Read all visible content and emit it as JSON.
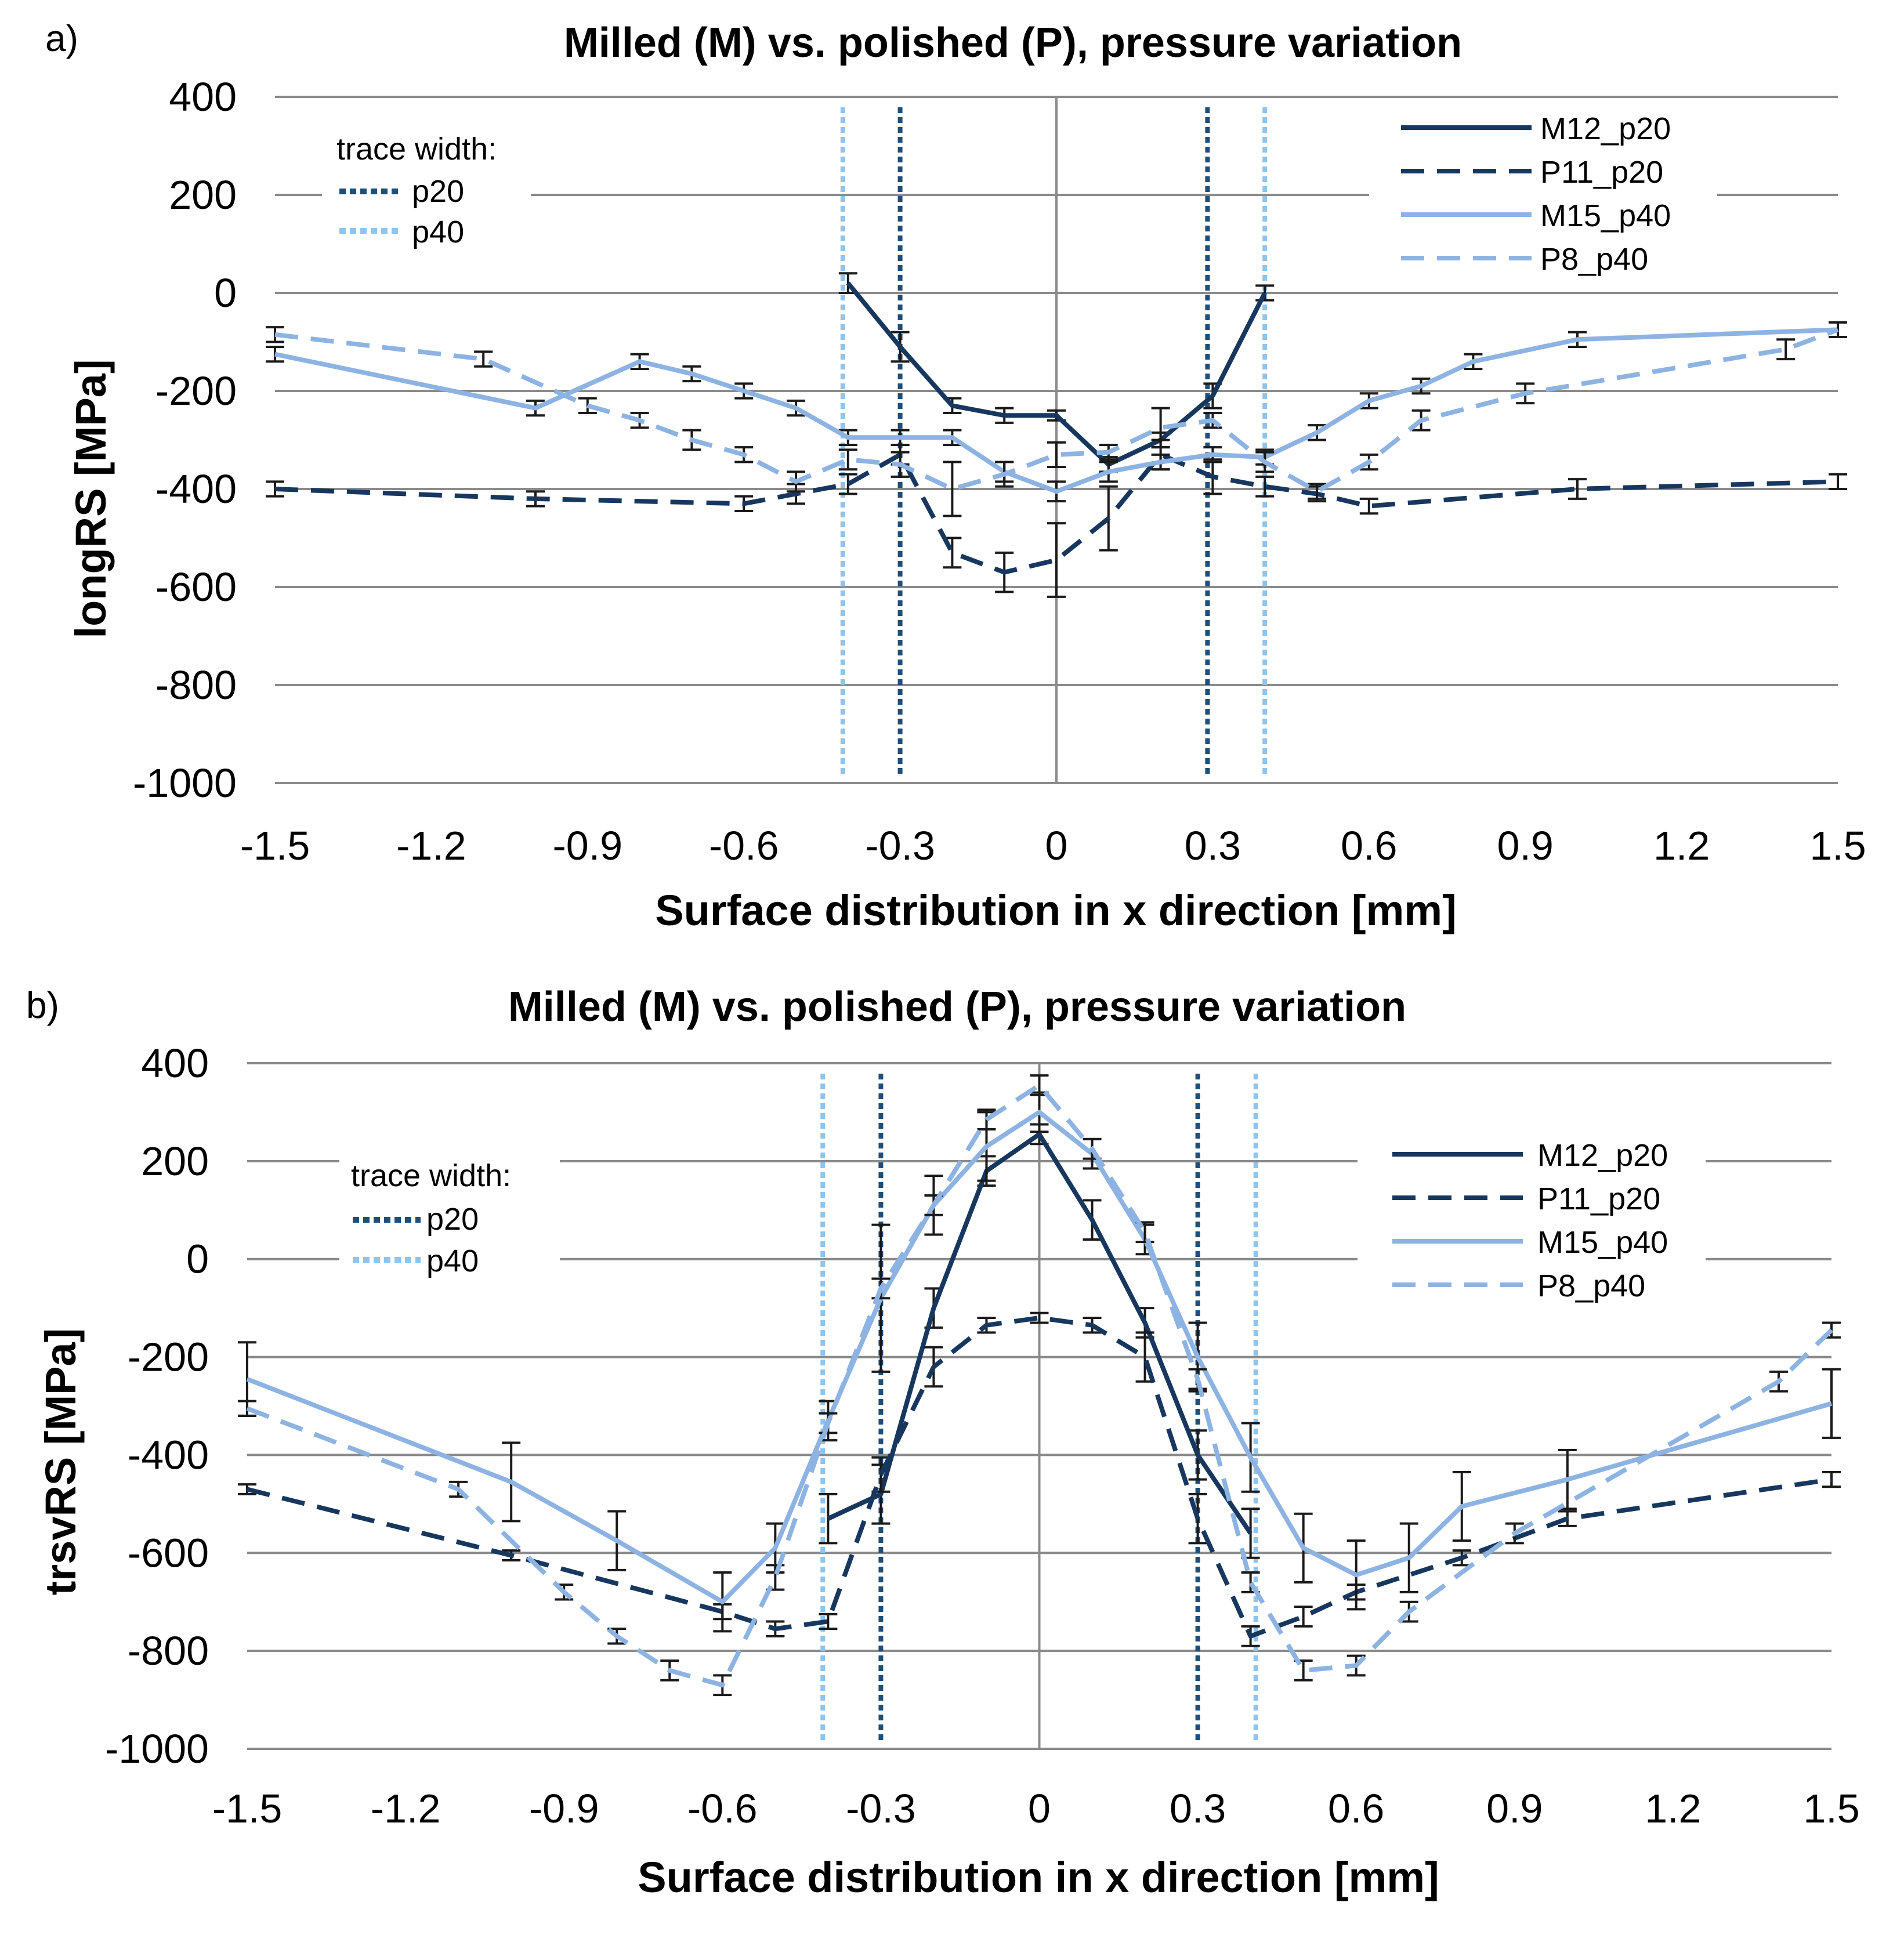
{
  "colors": {
    "dark": "#17375e",
    "light": "#8db3e2",
    "grid": "#8a8a8a",
    "errorbar": "#1a1a1a",
    "trace_p20": "#1f4e79",
    "trace_p40": "#8ec4ee"
  },
  "legend": {
    "series": [
      "M12_p20",
      "P11_p20",
      "M15_p40",
      "P8_p40"
    ],
    "trace_title": "trace width:",
    "trace_items": [
      "p20",
      "p40"
    ]
  },
  "chart_data": [
    {
      "panel_label": "a)",
      "type": "line",
      "title": "Milled  (M) vs. polished  (P), pressure variation",
      "xlabel": "Surface distribution  in x direction [mm]",
      "ylabel": "longRS [MPa]",
      "xlim": [
        -1.5,
        1.5
      ],
      "ylim": [
        -1000,
        400
      ],
      "x_ticks": [
        "-1.5",
        "-1.2",
        "-0.9",
        "-0.6",
        "-0.3",
        "0",
        "0.3",
        "0.6",
        "0.9",
        "1.2",
        "1.5"
      ],
      "y_ticks": [
        "400",
        "200",
        "0",
        "-200",
        "-400",
        "-600",
        "-800",
        "-1000"
      ],
      "trace_width_lines": [
        {
          "name": "p20",
          "x": [
            -0.3,
            0.29
          ]
        },
        {
          "name": "p40",
          "x": [
            -0.41,
            0.4
          ]
        }
      ],
      "series": [
        {
          "name": "M12_p20",
          "x": [
            -0.4,
            -0.3,
            -0.2,
            -0.1,
            0,
            0.1,
            0.2,
            0.3,
            0.4
          ],
          "y": [
            20,
            -110,
            -230,
            -250,
            -250,
            -350,
            -300,
            -210,
            0
          ],
          "err": [
            20,
            30,
            15,
            15,
            10,
            15,
            15,
            25,
            15
          ]
        },
        {
          "name": "P11_p20",
          "x": [
            -1.5,
            -1.0,
            -0.6,
            -0.5,
            -0.4,
            -0.3,
            -0.2,
            -0.1,
            0,
            0.1,
            0.2,
            0.3,
            0.4,
            0.5,
            0.6,
            1.0,
            1.5
          ],
          "y": [
            -400,
            -420,
            -430,
            -410,
            -390,
            -330,
            -530,
            -570,
            -545,
            -460,
            -330,
            -375,
            -395,
            -410,
            -435,
            -400,
            -385
          ],
          "err": [
            15,
            15,
            15,
            20,
            20,
            20,
            30,
            40,
            75,
            65,
            30,
            35,
            20,
            15,
            15,
            20,
            15
          ]
        },
        {
          "name": "M15_p40",
          "x": [
            -1.5,
            -1.0,
            -0.8,
            -0.7,
            -0.6,
            -0.5,
            -0.4,
            -0.3,
            -0.2,
            -0.1,
            0,
            0.1,
            0.2,
            0.3,
            0.4,
            0.5,
            0.6,
            0.7,
            0.8,
            1.0,
            1.5
          ],
          "y": [
            -125,
            -235,
            -140,
            -165,
            -200,
            -235,
            -295,
            -295,
            -295,
            -365,
            -405,
            -365,
            -345,
            -330,
            -335,
            -285,
            -220,
            -190,
            -140,
            -95,
            -75
          ],
          "err": [
            15,
            15,
            15,
            15,
            15,
            15,
            15,
            15,
            15,
            20,
            20,
            20,
            15,
            15,
            15,
            15,
            15,
            15,
            15,
            15,
            15
          ]
        },
        {
          "name": "P8_p40",
          "x": [
            -1.5,
            -1.1,
            -0.9,
            -0.8,
            -0.7,
            -0.6,
            -0.5,
            -0.4,
            -0.3,
            -0.2,
            -0.1,
            0,
            0.1,
            0.2,
            0.3,
            0.4,
            0.5,
            0.6,
            0.7,
            0.9,
            1.4,
            1.5
          ],
          "y": [
            -85,
            -135,
            -230,
            -260,
            -300,
            -330,
            -385,
            -340,
            -350,
            -400,
            -370,
            -330,
            -325,
            -275,
            -260,
            -345,
            -405,
            -345,
            -260,
            -205,
            -115,
            -75
          ],
          "err": [
            15,
            15,
            15,
            15,
            20,
            15,
            20,
            20,
            25,
            55,
            25,
            25,
            15,
            40,
            15,
            20,
            15,
            15,
            20,
            20,
            20,
            15
          ]
        }
      ]
    },
    {
      "panel_label": "b)",
      "type": "line",
      "title": "Milled  (M) vs. polished  (P), pressure variation",
      "xlabel": "Surface distribution  in x direction [mm]",
      "ylabel": "trsvRS [MPa]",
      "xlim": [
        -1.5,
        1.5
      ],
      "ylim": [
        -1000,
        400
      ],
      "x_ticks": [
        "-1.5",
        "-1.2",
        "-0.9",
        "-0.6",
        "-0.3",
        "0",
        "0.3",
        "0.6",
        "0.9",
        "1.2",
        "1.5"
      ],
      "y_ticks": [
        "400",
        "200",
        "0",
        "-200",
        "-400",
        "-600",
        "-800",
        "-1000"
      ],
      "trace_width_lines": [
        {
          "name": "p20",
          "x": [
            -0.3,
            0.3
          ]
        },
        {
          "name": "p40",
          "x": [
            -0.41,
            0.41
          ]
        }
      ],
      "series": [
        {
          "name": "M12_p20",
          "x": [
            -0.4,
            -0.3,
            -0.2,
            -0.1,
            0,
            0.1,
            0.2,
            0.3,
            0.4
          ],
          "y": [
            -530,
            -480,
            -100,
            180,
            255,
            80,
            -130,
            -400,
            -560
          ],
          "err": [
            50,
            60,
            40,
            30,
            20,
            40,
            30,
            50,
            50
          ]
        },
        {
          "name": "P11_p20",
          "x": [
            -1.5,
            -1.0,
            -0.6,
            -0.5,
            -0.4,
            -0.3,
            -0.2,
            -0.1,
            0,
            0.1,
            0.2,
            0.3,
            0.4,
            0.5,
            0.6,
            0.8,
            1.0,
            1.5
          ],
          "y": [
            -470,
            -605,
            -720,
            -755,
            -740,
            -440,
            -220,
            -135,
            -120,
            -135,
            -200,
            -530,
            -770,
            -730,
            -680,
            -610,
            -530,
            -450
          ],
          "err": [
            10,
            10,
            15,
            15,
            15,
            35,
            40,
            15,
            10,
            15,
            50,
            50,
            20,
            20,
            15,
            15,
            15,
            15
          ]
        },
        {
          "name": "M15_p40",
          "x": [
            -1.5,
            -1.0,
            -0.8,
            -0.6,
            -0.5,
            -0.4,
            -0.3,
            -0.2,
            -0.1,
            0,
            0.1,
            0.2,
            0.3,
            0.4,
            0.5,
            0.6,
            0.7,
            0.8,
            1.0,
            1.5
          ],
          "y": [
            -245,
            -455,
            -575,
            -700,
            -590,
            -330,
            -80,
            110,
            230,
            300,
            215,
            40,
            -200,
            -405,
            -590,
            -645,
            -610,
            -505,
            -450,
            -295
          ],
          "err": [
            75,
            80,
            60,
            60,
            50,
            40,
            150,
            60,
            70,
            40,
            30,
            30,
            70,
            70,
            70,
            70,
            70,
            70,
            60,
            70
          ]
        },
        {
          "name": "P8_p40",
          "x": [
            -1.5,
            -1.1,
            -0.9,
            -0.8,
            -0.7,
            -0.6,
            -0.5,
            -0.4,
            -0.3,
            -0.2,
            -0.1,
            0,
            0.1,
            0.2,
            0.3,
            0.4,
            0.5,
            0.6,
            0.7,
            0.9,
            1.4,
            1.5
          ],
          "y": [
            -305,
            -470,
            -680,
            -770,
            -840,
            -870,
            -650,
            -335,
            -60,
            110,
            285,
            355,
            225,
            55,
            -245,
            -660,
            -840,
            -830,
            -720,
            -560,
            -250,
            -145
          ],
          "err": [
            15,
            15,
            15,
            15,
            20,
            20,
            25,
            20,
            20,
            20,
            20,
            20,
            20,
            20,
            20,
            20,
            20,
            20,
            20,
            20,
            20,
            15
          ]
        }
      ]
    }
  ]
}
